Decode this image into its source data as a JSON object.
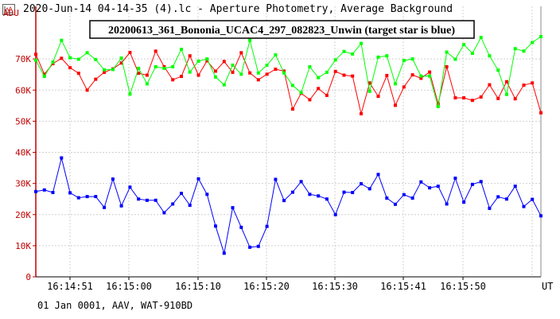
{
  "window": {
    "title": "2020-Jun-14 04-14-35 (4).lc - Aperture Photometry, Average Background",
    "icon": "chart-app-icon"
  },
  "footer": {
    "observation_info": "01 Jan 0001, AAV, WAT-910BD"
  },
  "chart_data": {
    "type": "line",
    "title": "20200613_361_Bononia_UCAC4_297_082823_Unwin (target star is blue)",
    "ylabel": "ADU",
    "xlabel": "UT",
    "ylim": [
      0,
      80000
    ],
    "yticks": [
      0,
      10000,
      20000,
      30000,
      40000,
      50000,
      60000,
      70000
    ],
    "ytick_labels": [
      "0",
      "10K",
      "20K",
      "30K",
      "40K",
      "50K",
      "60K",
      "70K"
    ],
    "xtick_labels": [
      "16:14:51",
      "16:15:00",
      "16:15:10",
      "16:15:20",
      "16:15:30",
      "16:15:41",
      "16:15:50"
    ],
    "grid": true,
    "colors": {
      "target": "#0000ff",
      "comp1": "#ff0000",
      "comp2": "#00ff00"
    },
    "series": [
      {
        "color": "#0000ff",
        "values": [
          27400,
          27900,
          27100,
          38200,
          27000,
          25400,
          25800,
          25800,
          22300,
          31400,
          22800,
          28800,
          25000,
          24600,
          24600,
          20600,
          23400,
          26800,
          23000,
          31500,
          26500,
          16300,
          7600,
          22200,
          15900,
          9500,
          9800,
          16200,
          31300,
          24500,
          27200,
          30600,
          26500,
          26000,
          25000,
          20000,
          27200,
          27100,
          29900,
          28300,
          32900,
          25300,
          23300,
          26400,
          25300,
          30500,
          28600,
          29100,
          23400,
          31700,
          24000,
          29700,
          30600,
          22000,
          25700,
          25000,
          29100,
          22600,
          24900,
          19600
        ]
      },
      {
        "color": "#ff0000",
        "values": [
          71500,
          65100,
          68500,
          70200,
          67200,
          65400,
          60000,
          63500,
          65700,
          66800,
          68700,
          72100,
          65400,
          64800,
          72500,
          67500,
          63300,
          64400,
          71000,
          64800,
          69400,
          66100,
          69200,
          65700,
          72000,
          65500,
          63300,
          65100,
          66700,
          66100,
          53900,
          59000,
          56900,
          60500,
          58300,
          66000,
          64800,
          64500,
          52400,
          62300,
          58000,
          64700,
          55100,
          61000,
          64900,
          63800,
          65800,
          55600,
          67500,
          57500,
          57500,
          56700,
          57800,
          61700,
          57300,
          62700,
          57200,
          61600,
          62300,
          52700
        ]
      },
      {
        "color": "#00ff00",
        "values": [
          69600,
          64400,
          69000,
          76000,
          70400,
          69900,
          72000,
          69800,
          66500,
          66600,
          70300,
          58700,
          67000,
          62000,
          67500,
          67000,
          67500,
          73100,
          65800,
          69300,
          70000,
          64200,
          61700,
          68000,
          65100,
          76000,
          65500,
          68000,
          71300,
          65500,
          61500,
          59200,
          67500,
          64000,
          65700,
          69700,
          72400,
          71600,
          75000,
          59600,
          70600,
          71000,
          62000,
          69500,
          70000,
          64500,
          64500,
          54700,
          72200,
          69900,
          74600,
          71800,
          76900,
          71000,
          66400,
          58600,
          73300,
          72500,
          75300,
          77200
        ]
      }
    ]
  }
}
